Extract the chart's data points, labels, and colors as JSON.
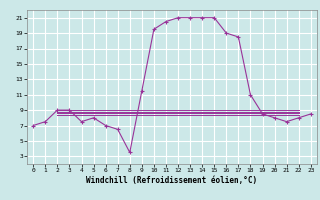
{
  "xlabel": "Windchill (Refroidissement éolien,°C)",
  "ylabel": "",
  "xlim": [
    -0.5,
    23.5
  ],
  "ylim": [
    2,
    22
  ],
  "yticks": [
    3,
    5,
    7,
    9,
    11,
    13,
    15,
    17,
    19,
    21
  ],
  "xticks": [
    0,
    1,
    2,
    3,
    4,
    5,
    6,
    7,
    8,
    9,
    10,
    11,
    12,
    13,
    14,
    15,
    16,
    17,
    18,
    19,
    20,
    21,
    22,
    23
  ],
  "bg_color": "#cce8e8",
  "grid_color": "#ffffff",
  "line_color": "#993399",
  "main_x": [
    0,
    1,
    2,
    3,
    4,
    5,
    6,
    7,
    8,
    9,
    10,
    11,
    12,
    13,
    14,
    15,
    16,
    17,
    18,
    19,
    20,
    21,
    22,
    23
  ],
  "main_y": [
    7.0,
    7.5,
    9.0,
    9.0,
    7.5,
    8.0,
    7.0,
    6.5,
    3.5,
    11.5,
    19.5,
    20.5,
    21.0,
    21.0,
    21.0,
    21.0,
    19.0,
    18.5,
    11.0,
    8.5,
    8.0,
    7.5,
    8.0,
    8.5
  ],
  "flat_lines": [
    [
      2,
      9.0,
      22,
      9.0
    ],
    [
      2,
      8.8,
      22,
      8.8
    ],
    [
      2,
      8.6,
      22,
      8.6
    ],
    [
      2,
      8.4,
      22,
      8.4
    ]
  ]
}
